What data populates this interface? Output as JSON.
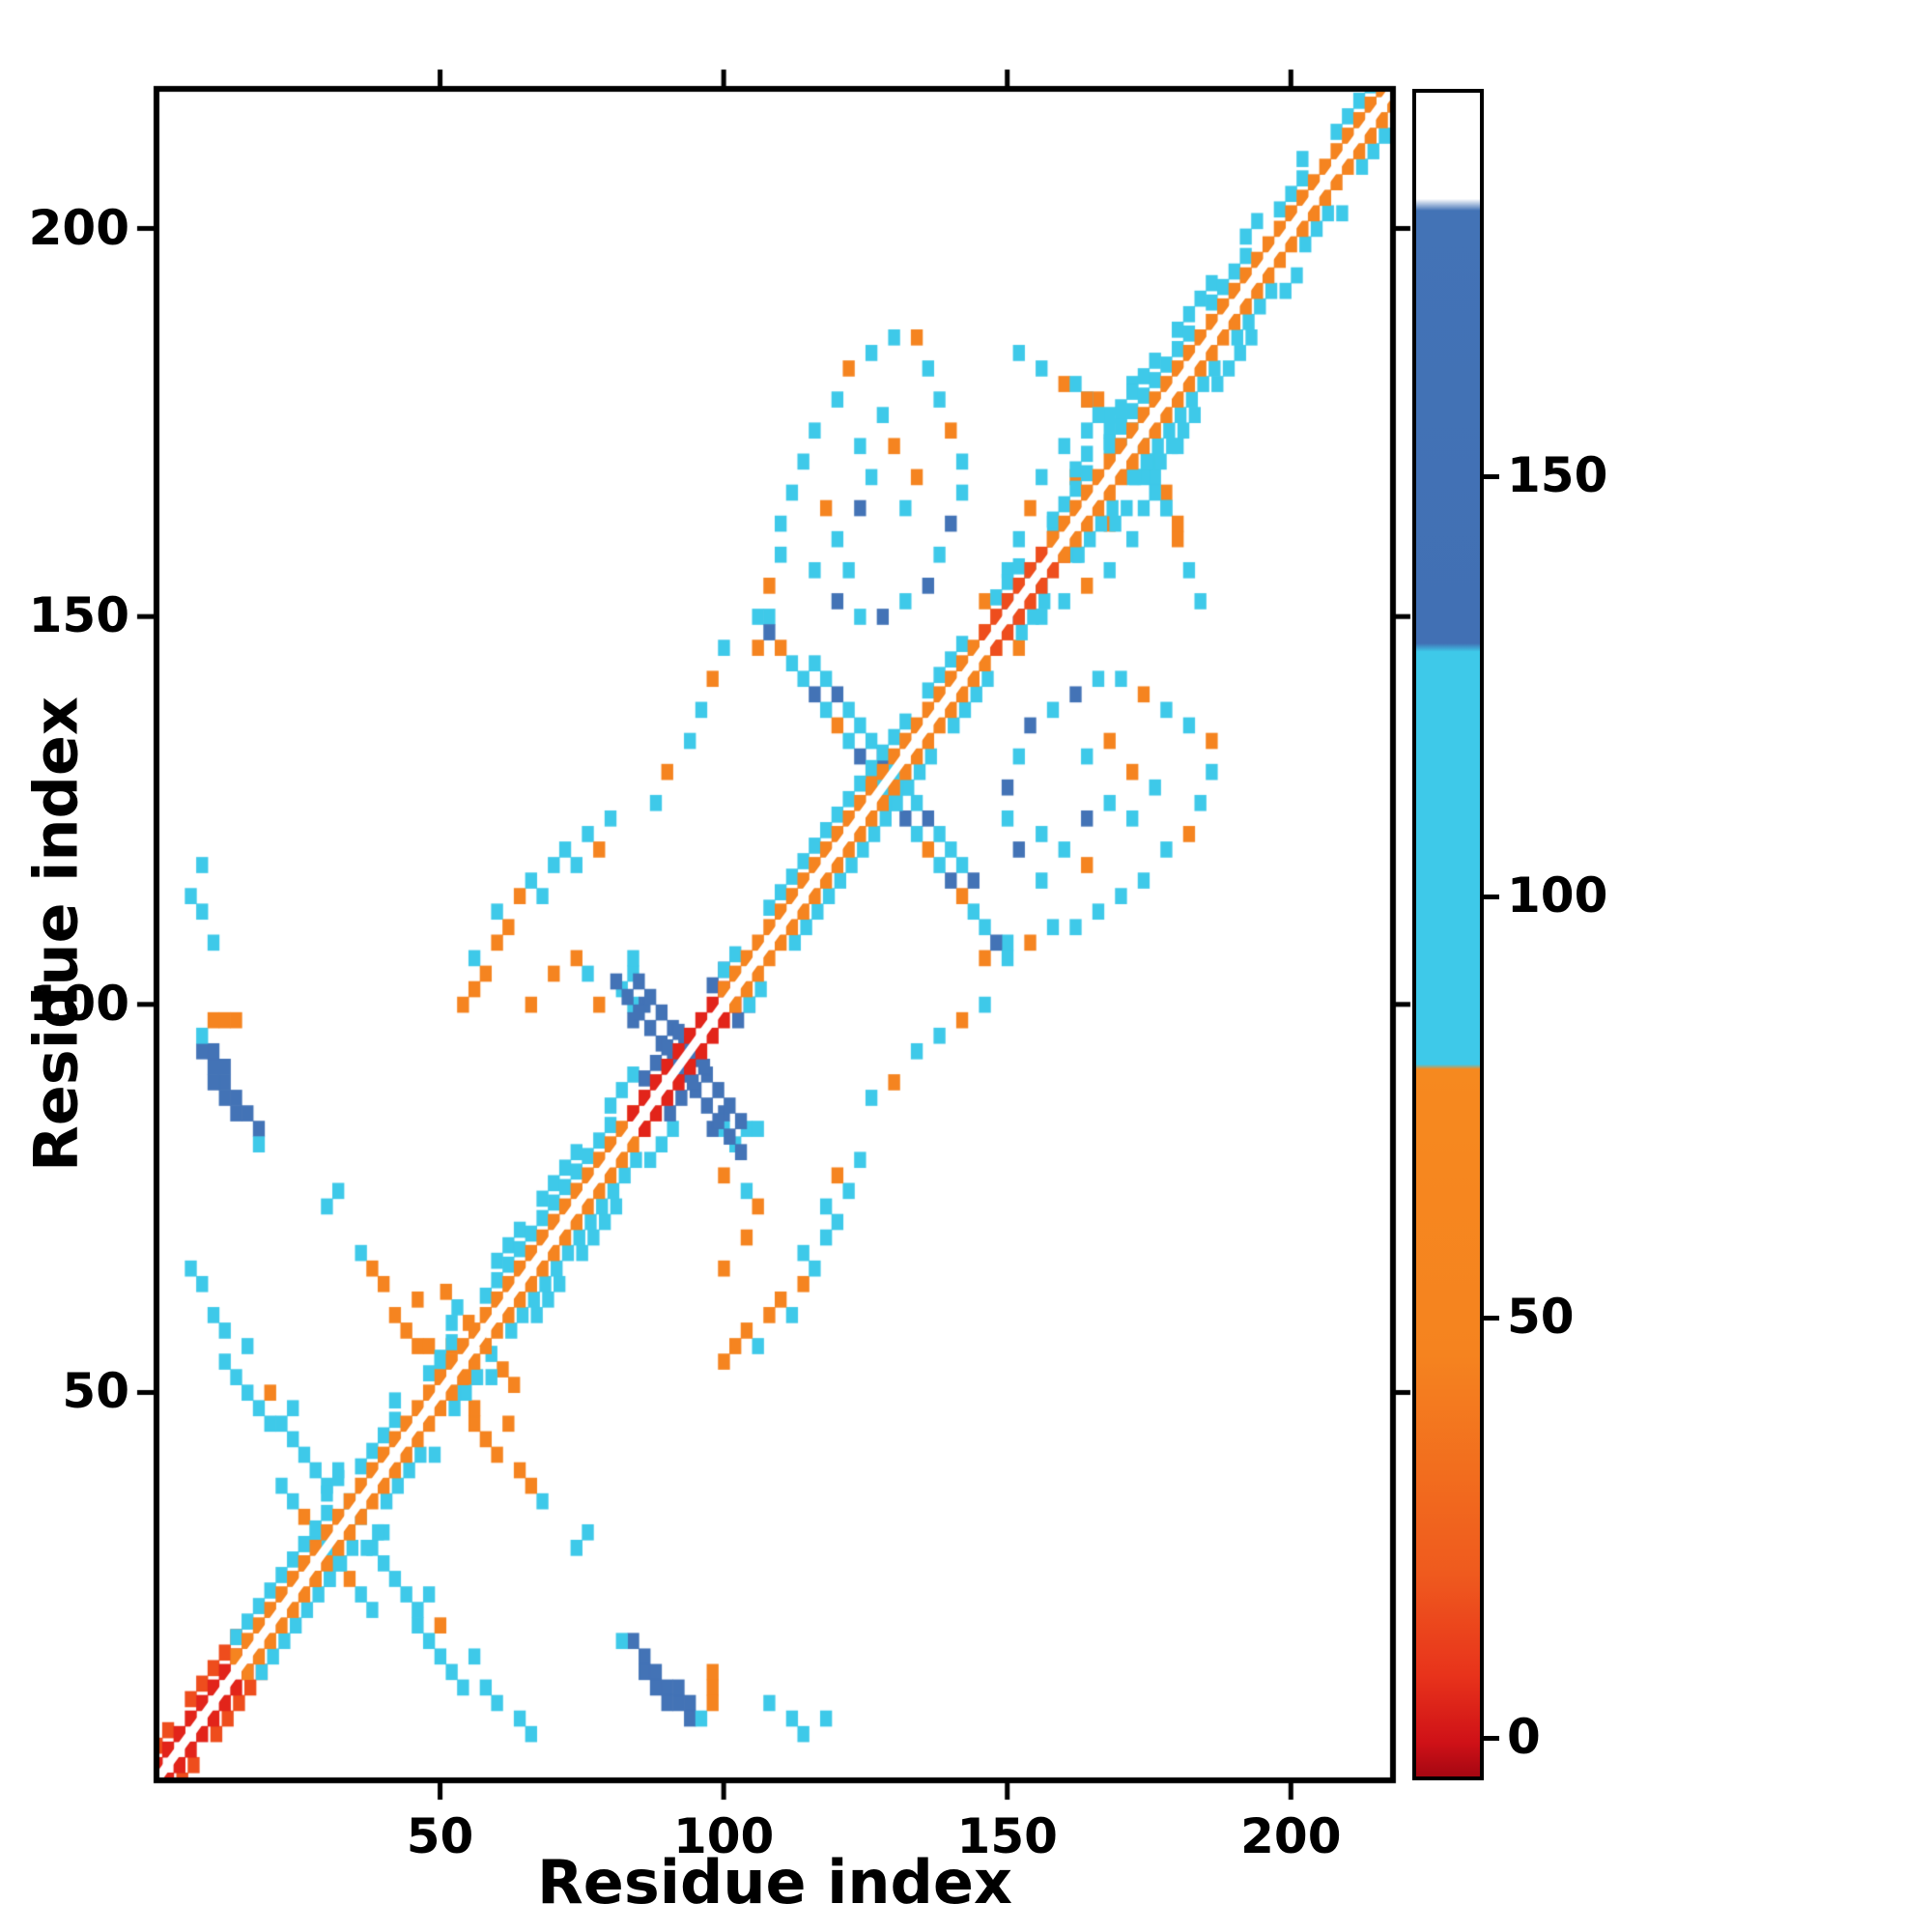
{
  "chart_data": {
    "type": "heatmap",
    "title": "",
    "xlabel": "Residue index",
    "ylabel": "Residue index",
    "x_range": [
      0,
      218
    ],
    "y_range": [
      0,
      218
    ],
    "x_ticks": [
      50,
      100,
      150,
      200
    ],
    "y_ticks": [
      50,
      100,
      150,
      200
    ],
    "grid": false,
    "legend": "colorbar-right",
    "colorbar": {
      "ticks": [
        0,
        50,
        100,
        150
      ],
      "value_range": [
        -5,
        196
      ],
      "gradient_stops": [
        [
          0,
          "#a50712"
        ],
        [
          0.02,
          "#cf1117"
        ],
        [
          0.06,
          "#e8331b"
        ],
        [
          0.12,
          "#ef5a1e"
        ],
        [
          0.25,
          "#f5831f"
        ],
        [
          0.42,
          "#f6891f"
        ],
        [
          0.423,
          "#3ec9e9"
        ],
        [
          0.668,
          "#3ec9e9"
        ],
        [
          0.673,
          "#4170b4"
        ],
        [
          0.93,
          "#4373b6"
        ],
        [
          0.937,
          "#ffffff"
        ],
        [
          1,
          "#ffffff"
        ]
      ]
    },
    "colormap_bands": [
      {
        "max": 18,
        "color": "#e2241a"
      },
      {
        "max": 34,
        "color": "#ee4d1d"
      },
      {
        "max": 82,
        "color": "#f58420"
      },
      {
        "max": 132,
        "color": "#3ec9e9"
      },
      {
        "max": 178,
        "color": "#4373b6"
      },
      {
        "max": 9999,
        "color": "#ffffff"
      }
    ],
    "diagonal_segments": [
      {
        "s": 0,
        "e": 14,
        "inner": 8,
        "outer": 30
      },
      {
        "s": 14,
        "e": 26,
        "inner": 46,
        "outer": 100
      },
      {
        "s": 26,
        "e": 84,
        "inner": 50,
        "outer": 100,
        "outer2": 100
      },
      {
        "s": 84,
        "e": 100,
        "inner": 12,
        "outer": 148
      },
      {
        "s": 100,
        "e": 146,
        "inner": 50,
        "outer": 100
      },
      {
        "s": 146,
        "e": 158,
        "inner": 28,
        "outer": 100
      },
      {
        "s": 158,
        "e": 216,
        "inner": 50,
        "outer": 100,
        "outer2": 100
      }
    ],
    "antidiagonal_streaks": [
      {
        "c": 30,
        "h": 8,
        "vals": [
          100,
          100,
          55,
          100
        ]
      },
      {
        "c": 57,
        "h": 6,
        "vals": [
          55,
          100,
          50
        ]
      },
      {
        "c": 92,
        "h": 11,
        "vals": [
          150,
          150,
          145,
          150
        ]
      },
      {
        "c": 94,
        "h": 9,
        "vals": [
          150,
          145,
          150
        ]
      },
      {
        "c": 128,
        "h": 22,
        "vals": [
          100,
          150,
          55,
          100,
          100,
          150,
          100,
          50
        ]
      },
      {
        "c": 130,
        "h": 14,
        "vals": [
          100,
          100,
          150,
          100
        ]
      },
      {
        "c": 171,
        "h": 9,
        "vals": [
          100,
          55,
          100,
          100
        ]
      }
    ],
    "clusters": [
      {
        "name": "blue-blob-88-12",
        "points": [
          [
            84,
            18,
            150
          ],
          [
            86,
            16,
            150
          ],
          [
            86,
            14,
            145
          ],
          [
            88,
            14,
            150
          ],
          [
            88,
            12,
            150
          ],
          [
            90,
            12,
            150
          ],
          [
            90,
            10,
            145
          ],
          [
            92,
            10,
            150
          ],
          [
            92,
            12,
            150
          ],
          [
            94,
            10,
            150
          ],
          [
            94,
            8,
            150
          ],
          [
            82,
            18,
            100
          ],
          [
            96,
            8,
            100
          ],
          [
            98,
            14,
            55
          ],
          [
            98,
            12,
            50
          ],
          [
            98,
            10,
            55
          ]
        ]
      },
      {
        "name": "cyan-trail-lower-left",
        "points": [
          [
            6,
            66,
            100
          ],
          [
            8,
            64,
            100
          ],
          [
            10,
            60,
            100
          ],
          [
            12,
            58,
            100
          ],
          [
            12,
            54,
            95
          ],
          [
            14,
            52,
            100
          ],
          [
            16,
            50,
            100
          ],
          [
            16,
            56,
            100
          ],
          [
            18,
            48,
            100
          ],
          [
            20,
            46,
            100
          ],
          [
            20,
            50,
            55
          ],
          [
            22,
            46,
            100
          ],
          [
            24,
            44,
            100
          ],
          [
            24,
            48,
            100
          ],
          [
            26,
            42,
            100
          ],
          [
            28,
            40,
            95
          ],
          [
            30,
            38,
            100
          ],
          [
            32,
            40,
            100
          ],
          [
            34,
            36,
            100
          ]
        ]
      },
      {
        "name": "orange-wing-40-60",
        "points": [
          [
            36,
            68,
            100
          ],
          [
            38,
            66,
            50
          ],
          [
            40,
            64,
            50
          ],
          [
            42,
            60,
            50
          ],
          [
            44,
            58,
            50
          ],
          [
            46,
            62,
            48
          ],
          [
            46,
            56,
            50
          ],
          [
            48,
            56,
            50
          ],
          [
            50,
            54,
            100
          ],
          [
            52,
            56,
            50
          ]
        ]
      },
      {
        "name": "mid-trail-60-120",
        "points": [
          [
            54,
            100,
            50
          ],
          [
            56,
            102,
            50
          ],
          [
            56,
            106,
            100
          ],
          [
            58,
            104,
            50
          ],
          [
            60,
            108,
            50
          ],
          [
            60,
            112,
            100
          ],
          [
            62,
            110,
            50
          ],
          [
            64,
            114,
            50
          ],
          [
            66,
            100,
            50
          ],
          [
            66,
            116,
            100
          ],
          [
            68,
            114,
            100
          ],
          [
            70,
            104,
            50
          ],
          [
            70,
            118,
            100
          ],
          [
            72,
            120,
            100
          ],
          [
            74,
            118,
            100
          ],
          [
            76,
            122,
            100
          ],
          [
            78,
            120,
            50
          ],
          [
            80,
            124,
            100
          ],
          [
            84,
            100,
            100
          ],
          [
            84,
            104,
            100
          ],
          [
            84,
            106,
            100
          ]
        ]
      },
      {
        "name": "isolated-specks",
        "points": [
          [
            108,
            10,
            95
          ],
          [
            112,
            8,
            100
          ],
          [
            114,
            6,
            100
          ],
          [
            118,
            8,
            100
          ],
          [
            74,
            30,
            100
          ],
          [
            76,
            32,
            100
          ]
        ]
      },
      {
        "name": "cross92-flecks",
        "points": [
          [
            100,
            78,
            55
          ],
          [
            102,
            82,
            100
          ],
          [
            104,
            76,
            100
          ],
          [
            106,
            74,
            50
          ],
          [
            98,
            84,
            150
          ],
          [
            100,
            86,
            150
          ]
        ]
      },
      {
        "name": "butterfly-upper-wing",
        "points": [
          [
            88,
            126,
            100
          ],
          [
            90,
            130,
            55
          ],
          [
            94,
            134,
            100
          ],
          [
            96,
            138,
            100
          ],
          [
            98,
            142,
            55
          ],
          [
            100,
            146,
            100
          ],
          [
            106,
            146,
            50
          ],
          [
            108,
            150,
            100
          ],
          [
            108,
            154,
            55
          ],
          [
            110,
            158,
            100
          ],
          [
            110,
            162,
            100
          ],
          [
            112,
            166,
            100
          ],
          [
            114,
            170,
            100
          ],
          [
            116,
            174,
            100
          ],
          [
            120,
            178,
            100
          ],
          [
            122,
            182,
            55
          ],
          [
            126,
            184,
            100
          ],
          [
            130,
            186,
            100
          ],
          [
            134,
            186,
            55
          ],
          [
            136,
            182,
            100
          ],
          [
            138,
            178,
            100
          ],
          [
            140,
            174,
            55
          ],
          [
            142,
            170,
            100
          ],
          [
            142,
            166,
            100
          ],
          [
            140,
            162,
            150
          ],
          [
            138,
            158,
            100
          ],
          [
            136,
            154,
            150
          ],
          [
            132,
            152,
            100
          ],
          [
            128,
            150,
            150
          ],
          [
            124,
            150,
            100
          ],
          [
            120,
            152,
            150
          ],
          [
            116,
            156,
            100
          ],
          [
            118,
            164,
            55
          ],
          [
            120,
            160,
            100
          ],
          [
            122,
            156,
            100
          ],
          [
            124,
            164,
            150
          ],
          [
            126,
            168,
            100
          ],
          [
            128,
            176,
            100
          ],
          [
            130,
            172,
            55
          ],
          [
            132,
            164,
            100
          ],
          [
            134,
            168,
            55
          ],
          [
            124,
            172,
            100
          ]
        ]
      },
      {
        "name": "butterfly-outer-arm",
        "points": [
          [
            146,
            152,
            55
          ],
          [
            150,
            156,
            100
          ],
          [
            152,
            150,
            150
          ],
          [
            152,
            160,
            100
          ],
          [
            154,
            164,
            55
          ],
          [
            156,
            154,
            100
          ],
          [
            156,
            168,
            100
          ],
          [
            158,
            162,
            100
          ],
          [
            160,
            158,
            55
          ],
          [
            160,
            172,
            100
          ],
          [
            162,
            168,
            55
          ],
          [
            164,
            174,
            100
          ],
          [
            166,
            178,
            55
          ],
          [
            168,
            172,
            100
          ],
          [
            170,
            176,
            100
          ],
          [
            172,
            180,
            100
          ],
          [
            174,
            172,
            100
          ],
          [
            176,
            168,
            100
          ],
          [
            178,
            164,
            100
          ],
          [
            180,
            160,
            55
          ],
          [
            182,
            156,
            100
          ],
          [
            184,
            152,
            100
          ]
        ]
      }
    ]
  }
}
